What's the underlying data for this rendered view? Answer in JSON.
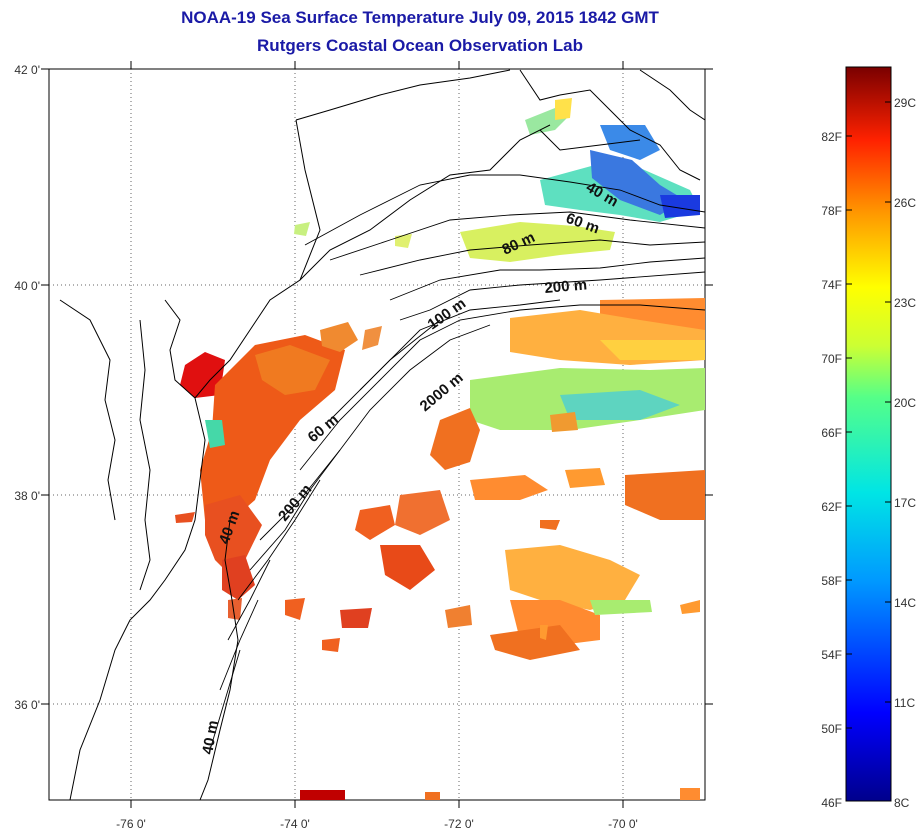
{
  "title": "NOAA-19 Sea Surface Temperature July 09, 2015 1842 GMT",
  "subtitle": "Rutgers Coastal Ocean Observation Lab",
  "lat_labels": [
    "42 0'",
    "40 0'",
    "38 0'",
    "36 0'"
  ],
  "lon_labels": [
    "-76 0'",
    "-74 0'",
    "-72 0'",
    "-70 0'"
  ],
  "depth_contour_labels": [
    "40 m",
    "60 m",
    "80 m",
    "200 m",
    "100 m",
    "2000 m",
    "60 m",
    "200 m",
    "40 m",
    "40 m"
  ],
  "colorbar": {
    "fahrenheit": [
      "82F",
      "78F",
      "74F",
      "70F",
      "66F",
      "62F",
      "58F",
      "54F",
      "50F",
      "46F"
    ],
    "celsius": [
      "29C",
      "26C",
      "23C",
      "20C",
      "17C",
      "14C",
      "11C",
      "8C"
    ]
  }
}
